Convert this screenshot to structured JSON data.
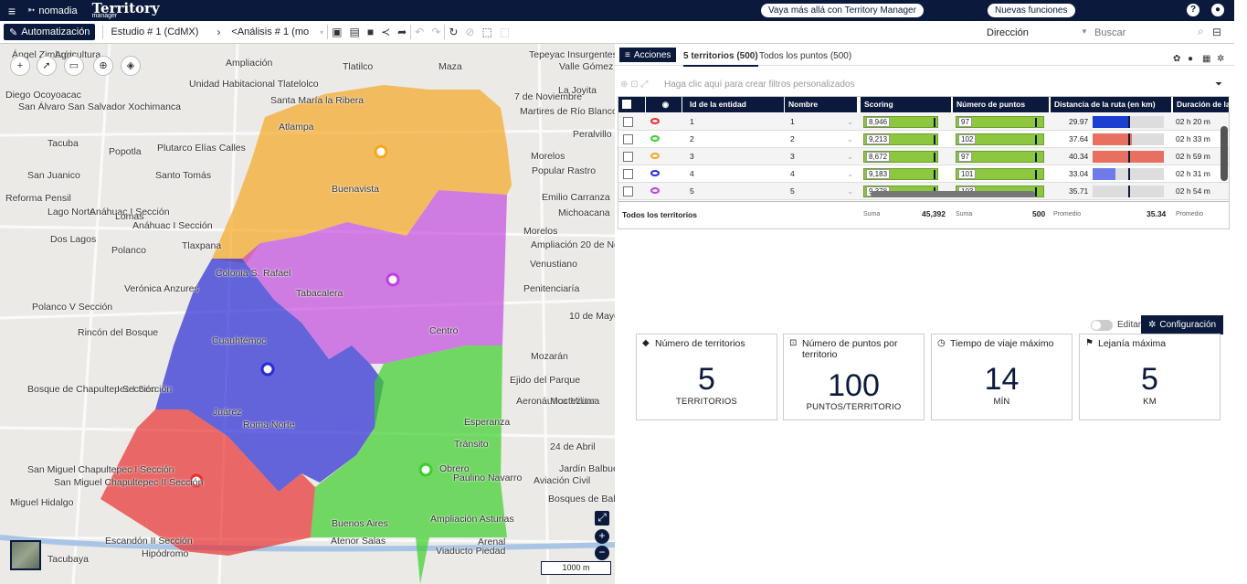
{
  "app": {
    "brand_nomadia": "nomadia",
    "brand_territory": "Territory",
    "brand_manager": "manager",
    "promo": "Vaya más allá con Territory Manager",
    "news": "Nuevas funciones",
    "help_icon": "help-icon",
    "user_icon": "user-icon"
  },
  "toolbar": {
    "auto": "Automatización",
    "study": "Estudio # 1 (CdMX)",
    "analysis": "<Análisis # 1 (mo",
    "direction": "Dirección",
    "search_placeholder": "Buscar"
  },
  "map": {
    "labels": [
      "Ángel Zimbrón",
      "Agricultura",
      "Ampliación",
      "Tlatilco",
      "Unidad Habitacional Tlatelolco",
      "Santa María la Ribera",
      "Atlampa",
      "Diego Ocoyoacac",
      "San Álvaro San Salvador Xochimanca",
      "Tacuba",
      "Popotla",
      "Plutarco Elías Calles",
      "San Juanico",
      "Santo Tomás",
      "Reforma Pensil",
      "Lago Norte",
      "Anáhuac I Sección",
      "Anáhuac I Sección",
      "Lomas",
      "Polanco",
      "Dos Lagos",
      "Tlaxpana",
      "Colonia S.",
      "Rafael",
      "Verónica Anzures",
      "Polanco V Sección",
      "Rincón del Bosque",
      "Bosque de Chapultepec I Sección",
      "I Sección",
      "San Miguel Chapultepec I Sección",
      "San Miguel Chapultepec II Sección",
      "Miguel Hidalgo",
      "Escandón II Sección",
      "Tacubaya",
      "Atenor Salas",
      "Viaducto Piedad",
      "Maza",
      "Tepeyac Insurgentes",
      "Valle Gómez",
      "La Joyita",
      "Peralvillo",
      "7 de Noviembre",
      "Martires de Río Blanco",
      "Morelos",
      "Popular Rastro",
      "Emilio Carranza",
      "Michoacana",
      "Morelos",
      "Ampliación 20 de Noviembre",
      "Venustiano",
      "Penitenciaría",
      "10 de Mayo",
      "Mozarán",
      "Ejido del Parque",
      "Aeronáutica Militar",
      "Moctezuma",
      "24 de Abril",
      "Jardín Balbuena",
      "Aviación Civil",
      "Bosques de Bal...",
      "Arenal",
      "Buenavista",
      "Tabacalera",
      "Centro",
      "Cuauhtémoc",
      "Esperanza",
      "Tránsito",
      "Obrero",
      "Buenos Aires",
      "Ampliación Asturias",
      "Paulino Navarro",
      "Juárez",
      "Roma Norte",
      "Hipódromo"
    ]
  },
  "map_ui": {
    "scale": "1000 m"
  },
  "tabs": {
    "actions": "Acciones",
    "territories": "5 territorios (500)",
    "points": "Todos los puntos (500)"
  },
  "filter": {
    "placeholder": "Haga clic aquí para crear filtros personalizados"
  },
  "table": {
    "headers": [
      "Id de la entidad",
      "Nombre",
      "Scoring",
      "Número de puntos",
      "Distancia de la ruta (en km)",
      "Duración de la ruta"
    ],
    "rows": [
      {
        "id": "1",
        "name": "1",
        "scoring": "8,946",
        "points": "97",
        "dist": "29.97",
        "dur": "02 h 20 m",
        "color": "#e83030",
        "dist_frac": 0.52,
        "dist_color": "#1a3fd1"
      },
      {
        "id": "2",
        "name": "2",
        "scoring": "9,213",
        "points": "102",
        "dist": "37.64",
        "dur": "02 h 33 m",
        "color": "#3acf2a",
        "dist_frac": 0.55,
        "dist_color": "#e87060"
      },
      {
        "id": "3",
        "name": "3",
        "scoring": "8,672",
        "points": "97",
        "dist": "40.34",
        "dur": "02 h 59 m",
        "color": "#f5a623",
        "dist_frac": 1.0,
        "dist_color": "#e87060"
      },
      {
        "id": "4",
        "name": "4",
        "scoring": "9,183",
        "points": "101",
        "dist": "33.04",
        "dur": "02 h 31 m",
        "color": "#2a2ad4",
        "dist_frac": 0.32,
        "dist_color": "#6f7be8"
      },
      {
        "id": "5",
        "name": "5",
        "scoring": "9,378",
        "points": "103",
        "dist": "35.71",
        "dur": "02 h 54 m",
        "color": "#c040e0",
        "dist_frac": 0.5,
        "dist_color": "#ddd"
      }
    ],
    "footer": {
      "label": "Todos los territorios",
      "scoring_lbl": "Suma",
      "scoring_val": "45,392",
      "points_lbl": "Suma",
      "points_val": "500",
      "dist_lbl": "Promedio",
      "dist_val": "35.34",
      "dur_lbl": "Promedio"
    }
  },
  "kpis": {
    "edit": "Editar",
    "config": "Configuración",
    "items": [
      {
        "title": "Número de territorios",
        "value": "5",
        "unit": "TERRITORIOS"
      },
      {
        "title": "Número de puntos por territorio",
        "value": "100",
        "unit": "PUNTOS/TERRITORIO"
      },
      {
        "title": "Tiempo de viaje máximo",
        "value": "14",
        "unit": "MÍN"
      },
      {
        "title": "Lejanía máxima",
        "value": "5",
        "unit": "KM"
      }
    ]
  }
}
